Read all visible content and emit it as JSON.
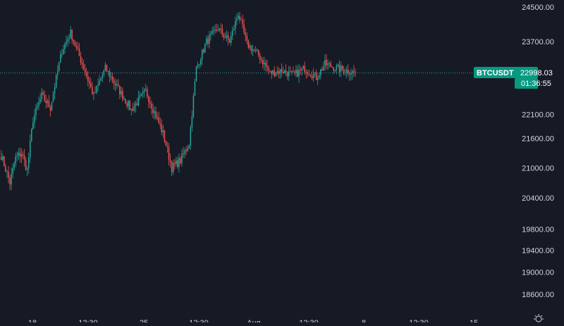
{
  "colors": {
    "background": "#161a25",
    "up": "#26a69a",
    "down": "#ef5350",
    "axis_text": "#d1d4dc",
    "badge": "#089981",
    "badge_text": "#ffffff"
  },
  "price_badge": {
    "symbol": "BTCUSDT",
    "price": "22998.03",
    "countdown": "01:36:55"
  },
  "settings_icon": "gear-icon",
  "chart_data": {
    "type": "candlestick",
    "y_axis": {
      "scale": "log",
      "ticks": [
        "24500.00",
        "23700.00",
        "22100.00",
        "21600.00",
        "21000.00",
        "20400.00",
        "19800.00",
        "19400.00",
        "19000.00",
        "18600.00"
      ]
    },
    "x_axis": {
      "ticks": [
        "18",
        "12:30",
        "25",
        "12:30",
        "Aug",
        "12:30",
        "8",
        "12:30",
        "15"
      ]
    },
    "last_price": 22998.03,
    "price_line_style": "dotted",
    "grid": false,
    "waypoints": [
      [
        0,
        21250
      ],
      [
        6,
        20700
      ],
      [
        10,
        21200
      ],
      [
        14,
        21300
      ],
      [
        18,
        20950
      ],
      [
        22,
        22000
      ],
      [
        28,
        22500
      ],
      [
        34,
        22250
      ],
      [
        42,
        23500
      ],
      [
        48,
        23900
      ],
      [
        56,
        23200
      ],
      [
        64,
        22500
      ],
      [
        72,
        23100
      ],
      [
        80,
        22700
      ],
      [
        90,
        22200
      ],
      [
        100,
        22600
      ],
      [
        106,
        22150
      ],
      [
        112,
        21700
      ],
      [
        118,
        21000
      ],
      [
        124,
        21150
      ],
      [
        130,
        21500
      ],
      [
        135,
        23100
      ],
      [
        142,
        23700
      ],
      [
        150,
        24000
      ],
      [
        158,
        23700
      ],
      [
        164,
        24350
      ],
      [
        170,
        23650
      ],
      [
        178,
        23400
      ],
      [
        186,
        23000
      ],
      [
        194,
        23050
      ],
      [
        202,
        22950
      ],
      [
        210,
        23100
      ],
      [
        218,
        22900
      ],
      [
        224,
        23200
      ],
      [
        232,
        23100
      ],
      [
        240,
        23050
      ],
      [
        245,
        22998
      ]
    ]
  }
}
